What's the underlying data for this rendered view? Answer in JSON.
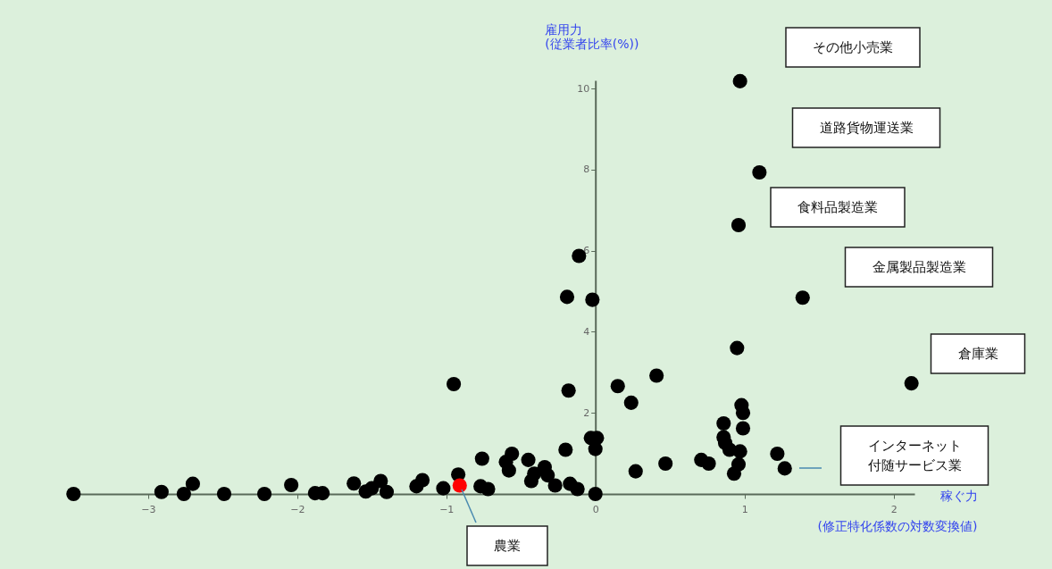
{
  "chart_data": {
    "type": "scatter",
    "xlabel": "稼ぐ力\n(修正特化係数の対数変換値)",
    "ylabel": "雇用力\n(従業者比率(%))",
    "x": [
      -3.5,
      -2.91,
      -2.76,
      -2.7,
      -2.49,
      -2.22,
      -2.04,
      -1.88,
      -1.83,
      -1.62,
      -1.54,
      -1.5,
      -1.44,
      -1.4,
      -1.2,
      -1.16,
      -1.02,
      -0.95,
      -0.92,
      -0.91,
      -0.76,
      -0.77,
      -0.72,
      -0.56,
      -0.6,
      -0.58,
      -0.45,
      -0.43,
      -0.41,
      -0.34,
      -0.32,
      -0.27,
      -0.2,
      -0.17,
      -0.12,
      -0.18,
      -0.03,
      0.01,
      0.0,
      0.0,
      0.15,
      -0.11,
      -0.19,
      -0.02,
      0.97,
      1.1,
      0.96,
      0.95,
      1.39,
      2.12,
      0.41,
      0.24,
      0.27,
      0.47,
      0.71,
      0.76,
      0.86,
      0.86,
      0.87,
      0.9,
      0.97,
      0.98,
      0.99,
      0.99,
      0.96,
      0.93,
      1.22,
      1.27
    ],
    "values": [
      0,
      0.05,
      0,
      0.25,
      0,
      0,
      0.22,
      0.02,
      0.02,
      0.26,
      0.06,
      0.14,
      0.32,
      0.05,
      0.19,
      0.34,
      0.14,
      2.71,
      0.48,
      0.21,
      0.87,
      0.19,
      0.12,
      0.99,
      0.79,
      0.58,
      0.84,
      0.32,
      0.5,
      0.66,
      0.46,
      0.21,
      1.09,
      0.25,
      0.12,
      2.55,
      1.38,
      1.38,
      1.11,
      0,
      2.66,
      5.87,
      4.86,
      4.79,
      10.18,
      7.93,
      6.63,
      3.6,
      4.84,
      2.73,
      2.92,
      2.25,
      0.56,
      0.75,
      0.84,
      0.75,
      1.74,
      1.4,
      1.26,
      1.09,
      1.05,
      2.19,
      2.0,
      1.62,
      0.73,
      0.5,
      0.99,
      0.63
    ],
    "colors": [
      "#000000",
      "#000000",
      "#000000",
      "#000000",
      "#000000",
      "#000000",
      "#000000",
      "#000000",
      "#000000",
      "#000000",
      "#000000",
      "#000000",
      "#000000",
      "#000000",
      "#000000",
      "#000000",
      "#000000",
      "#000000",
      "#000000",
      "#ff0000",
      "#000000",
      "#000000",
      "#000000",
      "#000000",
      "#000000",
      "#000000",
      "#000000",
      "#000000",
      "#000000",
      "#000000",
      "#000000",
      "#000000",
      "#000000",
      "#000000",
      "#000000",
      "#000000",
      "#000000",
      "#000000",
      "#000000",
      "#000000",
      "#000000",
      "#000000",
      "#000000",
      "#000000",
      "#000000",
      "#000000",
      "#000000",
      "#000000",
      "#000000",
      "#000000",
      "#000000",
      "#000000",
      "#000000",
      "#000000",
      "#000000",
      "#000000",
      "#000000",
      "#000000",
      "#000000",
      "#000000",
      "#000000",
      "#000000",
      "#000000",
      "#000000",
      "#000000",
      "#000000",
      "#000000",
      "#000000"
    ],
    "xlim": [
      -3.55,
      2.14
    ],
    "ylim": [
      0,
      10.2
    ],
    "xticks": [
      -3,
      -2,
      -1,
      0,
      1,
      2
    ],
    "yticks": [
      2,
      4,
      6,
      8,
      10
    ],
    "grid": false,
    "marker": "circle",
    "annotations": [
      "その他小売業",
      "道路貨物運送業",
      "食料品製造業",
      "金属製品製造業",
      "倉庫業",
      "インターネット付随サービス業",
      "農業"
    ]
  }
}
